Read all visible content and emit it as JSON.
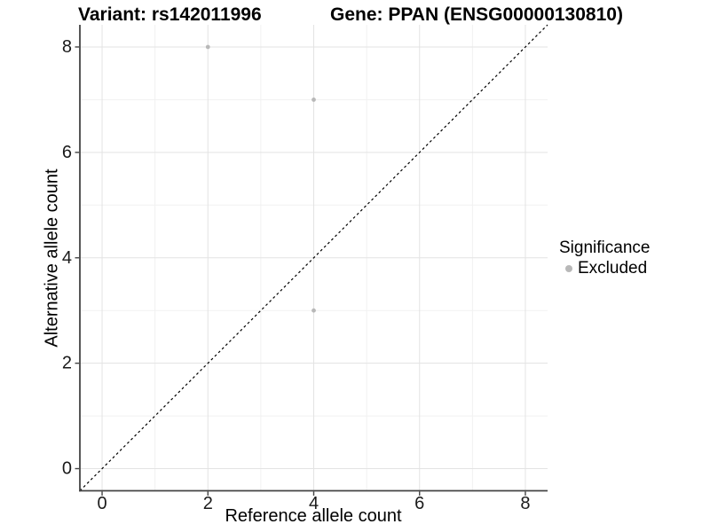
{
  "chart_data": {
    "type": "scatter",
    "title_variant": "Variant: rs142011996",
    "title_gene": "Gene: PPAN (ENSG00000130810)",
    "xlabel": "Reference allele count",
    "ylabel": "Alternative allele count",
    "xlim": [
      -0.42,
      8.42
    ],
    "ylim": [
      -0.42,
      8.42
    ],
    "x_ticks": [
      0,
      2,
      4,
      6,
      8
    ],
    "y_ticks": [
      0,
      2,
      4,
      6,
      8
    ],
    "x_minor_ticks": [
      1,
      3,
      5,
      7
    ],
    "y_minor_ticks": [
      1,
      3,
      5,
      7
    ],
    "grid": true,
    "reference_line": {
      "equation": "y = x",
      "style": "dashed",
      "color": "#000000"
    },
    "series": [
      {
        "name": "Excluded",
        "color": "#b8b8b8",
        "points": [
          {
            "x": 2,
            "y": 8
          },
          {
            "x": 4,
            "y": 7
          },
          {
            "x": 4,
            "y": 3
          }
        ]
      }
    ],
    "legend": {
      "title": "Significance",
      "position": "right",
      "items": [
        {
          "label": "Excluded",
          "color": "#b8b8b8"
        }
      ]
    },
    "colors": {
      "background": "#ffffff",
      "grid_major": "#e3e3e3",
      "grid_minor": "#f1f1f1",
      "axis": "#444444",
      "tick_text": "#1a1a1a"
    }
  }
}
